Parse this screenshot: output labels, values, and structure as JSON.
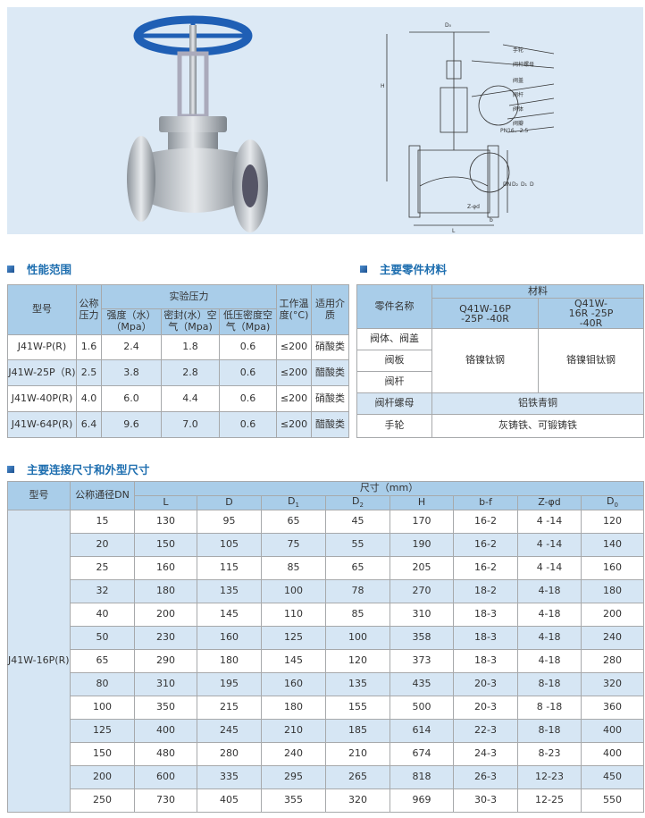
{
  "drawing": {
    "labels": [
      "手轮",
      "阀杆螺母",
      "阀盖",
      "阀杆",
      "阀体",
      "阀瓣",
      "PN16、2.5"
    ],
    "dims": [
      "D₀",
      "H",
      "DN",
      "D₂",
      "D₁",
      "D",
      "Z-φd",
      "b",
      "L"
    ]
  },
  "colors": {
    "header_bg": "#a9cde9",
    "alt_row_bg": "#d6e6f4",
    "section_title": "#1f6fb0",
    "handwheel": "#1f5fb5"
  },
  "section1": {
    "title": "性能范围"
  },
  "section2": {
    "title": "主要零件材料"
  },
  "section3": {
    "title": "主要连接尺寸和外型尺寸"
  },
  "perf": {
    "h_model": "型号",
    "h_pn": "公称压力",
    "h_test": "实验压力",
    "h_temp": "工作温度(°C)",
    "h_medium": "适用介质",
    "h_strength": "强度（水）（Mpa）",
    "h_seal": "密封(水）空气（Mpa)",
    "h_low": "低压密度空气（Mpa)",
    "rows": [
      [
        "J41W-P(R)",
        "1.6",
        "2.4",
        "1.8",
        "0.6",
        "≤200",
        "硝酸类"
      ],
      [
        "J41W-25P（R)",
        "2.5",
        "3.8",
        "2.8",
        "0.6",
        "≤200",
        "醋酸类"
      ],
      [
        "J41W-40P(R)",
        "4.0",
        "6.0",
        "4.4",
        "0.6",
        "≤200",
        "硝酸类"
      ],
      [
        "J41W-64P(R)",
        "6.4",
        "9.6",
        "7.0",
        "0.6",
        "≤200",
        "醋酸类"
      ]
    ]
  },
  "mat": {
    "h_part": "零件名称",
    "h_material": "材料",
    "h_col1": "Q41W-16P -25P -40R",
    "h_col2": "Q41W-16R -25P -40R",
    "parts": [
      "阀体、阀盖",
      "阀板",
      "阀杆",
      "阀杆螺母",
      "手轮"
    ],
    "m1": "铬镍钛钢",
    "m2": "铬镍钼钛钢",
    "m_nut": "铝铁青铜",
    "m_wheel": "灰铸铁、可锻铸铁"
  },
  "dim": {
    "h_model": "型号",
    "h_dn": "公称通径DN",
    "h_size": "尺寸（mm）",
    "cols": [
      "L",
      "D",
      "D1",
      "D2",
      "H",
      "b-f",
      "Z-φd",
      "D0"
    ],
    "model": "J41W-16P(R)",
    "rows": [
      [
        "15",
        "130",
        "95",
        "65",
        "45",
        "170",
        "16-2",
        "4 -14",
        "120"
      ],
      [
        "20",
        "150",
        "105",
        "75",
        "55",
        "190",
        "16-2",
        "4 -14",
        "140"
      ],
      [
        "25",
        "160",
        "115",
        "85",
        "65",
        "205",
        "16-2",
        "4 -14",
        "160"
      ],
      [
        "32",
        "180",
        "135",
        "100",
        "78",
        "270",
        "18-2",
        "4-18",
        "180"
      ],
      [
        "40",
        "200",
        "145",
        "110",
        "85",
        "310",
        "18-3",
        "4-18",
        "200"
      ],
      [
        "50",
        "230",
        "160",
        "125",
        "100",
        "358",
        "18-3",
        "4-18",
        "240"
      ],
      [
        "65",
        "290",
        "180",
        "145",
        "120",
        "373",
        "18-3",
        "4-18",
        "280"
      ],
      [
        "80",
        "310",
        "195",
        "160",
        "135",
        "435",
        "20-3",
        "8-18",
        "320"
      ],
      [
        "100",
        "350",
        "215",
        "180",
        "155",
        "500",
        "20-3",
        "8 -18",
        "360"
      ],
      [
        "125",
        "400",
        "245",
        "210",
        "185",
        "614",
        "22-3",
        "8-18",
        "400"
      ],
      [
        "150",
        "480",
        "280",
        "240",
        "210",
        "674",
        "24-3",
        "8-23",
        "400"
      ],
      [
        "200",
        "600",
        "335",
        "295",
        "265",
        "818",
        "26-3",
        "12-23",
        "450"
      ],
      [
        "250",
        "730",
        "405",
        "355",
        "320",
        "969",
        "30-3",
        "12-25",
        "550"
      ]
    ]
  }
}
